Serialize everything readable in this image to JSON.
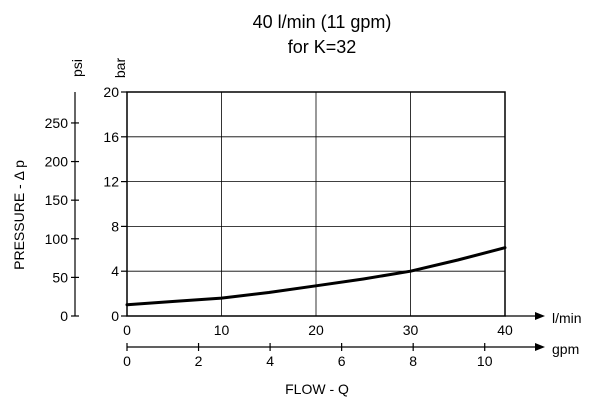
{
  "chart_data": {
    "type": "line",
    "title": "40 l/min (11 gpm)",
    "subtitle": "for K=32",
    "xlabel": "FLOW - Q",
    "ylabel": "PRESSURE - Δ p",
    "x_primary": {
      "unit": "l/min",
      "ticks": [
        0,
        10,
        20,
        30,
        40
      ],
      "range": [
        0,
        40
      ]
    },
    "x_secondary": {
      "unit": "gpm",
      "ticks": [
        0,
        2,
        4,
        6,
        8,
        10
      ]
    },
    "y_primary": {
      "unit": "bar",
      "ticks": [
        0,
        4,
        8,
        12,
        16,
        20
      ],
      "range": [
        0,
        20
      ]
    },
    "y_secondary": {
      "unit": "psi",
      "ticks": [
        0,
        50,
        100,
        150,
        200,
        250
      ]
    },
    "grid": true,
    "series": [
      {
        "x": [
          0,
          5,
          10,
          15,
          20,
          25,
          30,
          35,
          40
        ],
        "y": [
          1.0,
          1.3,
          1.6,
          2.1,
          2.7,
          3.3,
          4.0,
          5.0,
          6.1
        ]
      }
    ]
  }
}
